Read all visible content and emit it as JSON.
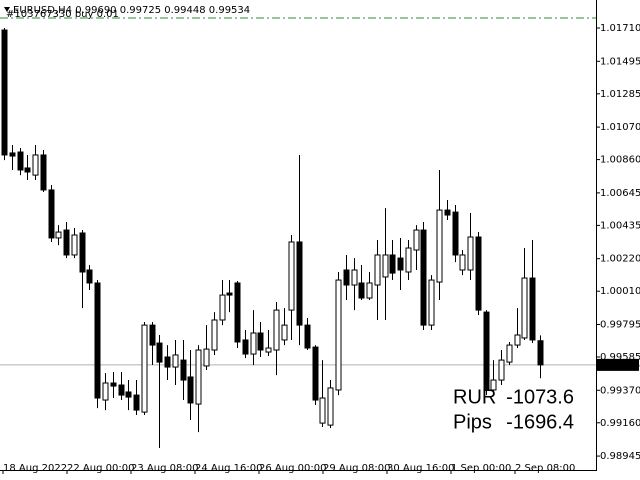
{
  "chart_data": {
    "type": "candlestick",
    "title": "EURUSD,H4  0.99690 0.99725 0.99448 0.99534",
    "x_labels": [
      "18 Aug 2022",
      "22 Aug 00:00",
      "23 Aug 08:00",
      "24 Aug 16:00",
      "26 Aug 00:00",
      "29 Aug 08:00",
      "30 Aug 16:00",
      "1 Sep 00:00",
      "2 Sep 08:00"
    ],
    "open": [
      1.01697,
      1.00903,
      1.00909,
      1.00806,
      1.0076,
      1.0089,
      1.00664,
      1.00354,
      1.00405,
      1.00244,
      1.00386,
      1.00147,
      1.00063,
      0.99307,
      0.99417,
      0.99404,
      0.99359,
      0.99339,
      0.99229,
      0.99791,
      0.99675,
      0.99585,
      0.9952,
      0.99565,
      0.99456,
      0.99281,
      0.99527,
      0.9963,
      0.99824,
      0.99998,
      1.00063,
      0.99695,
      0.99604,
      0.9974,
      0.99617,
      0.9963,
      0.99695,
      0.99888,
      1.00328,
      0.99791,
      0.99649,
      0.99158,
      0.99145,
      0.99372,
      1.00147,
      1.0005,
      1.00063,
      0.99966,
      1.0005,
      1.00102,
      1.00244,
      1.00224,
      1.00134,
      1.00276,
      1.00405,
      0.99791,
      1.00069,
      1.00534,
      1.00521,
      1.00147,
      1.00147,
      1.0036,
      0.99875,
      0.99372,
      0.99436,
      0.99552,
      0.99662,
      0.99708,
      1.00095,
      0.9969
    ],
    "high": [
      1.0171,
      1.00954,
      1.00935,
      1.0089,
      1.00954,
      1.00922,
      1.00696,
      1.00437,
      1.00457,
      1.00418,
      1.00405,
      1.00179,
      1.00082,
      0.99481,
      0.99488,
      0.99488,
      0.99436,
      0.99436,
      0.99811,
      0.99811,
      0.99727,
      0.99662,
      0.99695,
      0.99695,
      0.9963,
      0.99662,
      0.99791,
      0.99875,
      1.00082,
      1.00082,
      1.00076,
      0.99759,
      0.99888,
      0.99811,
      0.99759,
      0.9994,
      0.99901,
      1.00373,
      1.0089,
      0.99837,
      0.99662,
      0.99565,
      0.99436,
      1.00134,
      1.00244,
      1.00224,
      1.00179,
      1.00134,
      1.00341,
      1.00547,
      1.00341,
      1.00354,
      1.00341,
      1.00437,
      1.00457,
      1.00114,
      1.00793,
      1.00599,
      1.00567,
      1.00276,
      1.00515,
      1.00392,
      0.99888,
      0.99565,
      0.9963,
      0.99682,
      0.99901,
      1.00289,
      1.00341,
      0.99725
    ],
    "low": [
      1.00857,
      1.00793,
      1.0076,
      1.00728,
      1.00728,
      1.00651,
      1.00328,
      1.00308,
      1.00224,
      1.00224,
      0.99901,
      1.00018,
      0.99255,
      0.99242,
      0.9932,
      0.99307,
      0.99242,
      0.9921,
      0.9921,
      0.99533,
      0.98997,
      0.99436,
      0.99404,
      0.99307,
      0.99178,
      0.991,
      0.99501,
      0.99598,
      0.99791,
      0.99875,
      0.99643,
      0.99578,
      0.99533,
      0.99585,
      0.99591,
      0.99468,
      0.99662,
      0.99695,
      0.99662,
      0.9963,
      0.99275,
      0.99133,
      0.99126,
      0.99339,
      0.99953,
      0.99888,
      0.99953,
      0.99953,
      0.99824,
      0.99824,
      1.00082,
      1.00018,
      1.00082,
      1.00147,
      0.99759,
      0.99759,
      0.99953,
      1.0047,
      1.00198,
      1.00114,
      1.00082,
      0.99856,
      0.99339,
      0.99352,
      0.99404,
      0.99533,
      0.99643,
      0.99695,
      0.99675,
      0.99448
    ],
    "close": [
      1.0089,
      1.00883,
      1.00793,
      1.0078,
      1.0089,
      1.00664,
      1.00354,
      1.00392,
      1.00244,
      1.00373,
      1.00134,
      1.00063,
      0.9932,
      0.99417,
      0.99397,
      0.99339,
      0.99326,
      0.99242,
      0.99791,
      0.99662,
      0.99552,
      0.9952,
      0.99598,
      0.99436,
      0.99288,
      0.9963,
      0.99636,
      0.99824,
      0.99985,
      0.99985,
      0.99682,
      0.99604,
      0.9974,
      0.9963,
      0.99643,
      0.99888,
      0.99791,
      1.00328,
      0.99791,
      0.99643,
      0.99307,
      0.9932,
      0.99385,
      1.00082,
      1.0005,
      1.00147,
      0.99966,
      1.00063,
      1.00244,
      1.00244,
      1.00127,
      1.00147,
      1.00289,
      1.00405,
      0.99791,
      1.00082,
      1.00534,
      1.00502,
      1.00244,
      1.00244,
      1.0036,
      0.99888,
      0.99372,
      0.99436,
      0.99565,
      0.99662,
      0.99727,
      1.00095,
      0.99695,
      0.99534
    ],
    "up_color": "#ffffff",
    "down_color": "#000000",
    "line_color": "#000000",
    "ylim": [
      0.98855,
      1.01891
    ],
    "yticks": [
      {
        "value": 1.0171,
        "label": "1.01710"
      },
      1.01495,
      1.01285,
      {
        "value": 1.0107,
        "label": "1.01070"
      },
      {
        "value": 1.0086,
        "label": "1.00860"
      },
      1.00645,
      1.00435,
      {
        "value": 1.0022,
        "label": "1.00220"
      },
      {
        "value": 1.0001,
        "label": "1.00010"
      },
      0.99795,
      0.99585,
      {
        "value": 0.9937,
        "label": "0.99370"
      },
      {
        "value": 0.9916,
        "label": "0.99160"
      },
      0.98945
    ],
    "grid": false,
    "current_price": 0.99534,
    "order_line": {
      "label": "#103767330 buy 0.01",
      "value": 1.01775,
      "color": "#2e8b2e"
    },
    "profit": [
      {
        "label": "RUR",
        "value": -1073.6
      },
      {
        "label": "Pips",
        "value": -1696.4
      }
    ]
  }
}
